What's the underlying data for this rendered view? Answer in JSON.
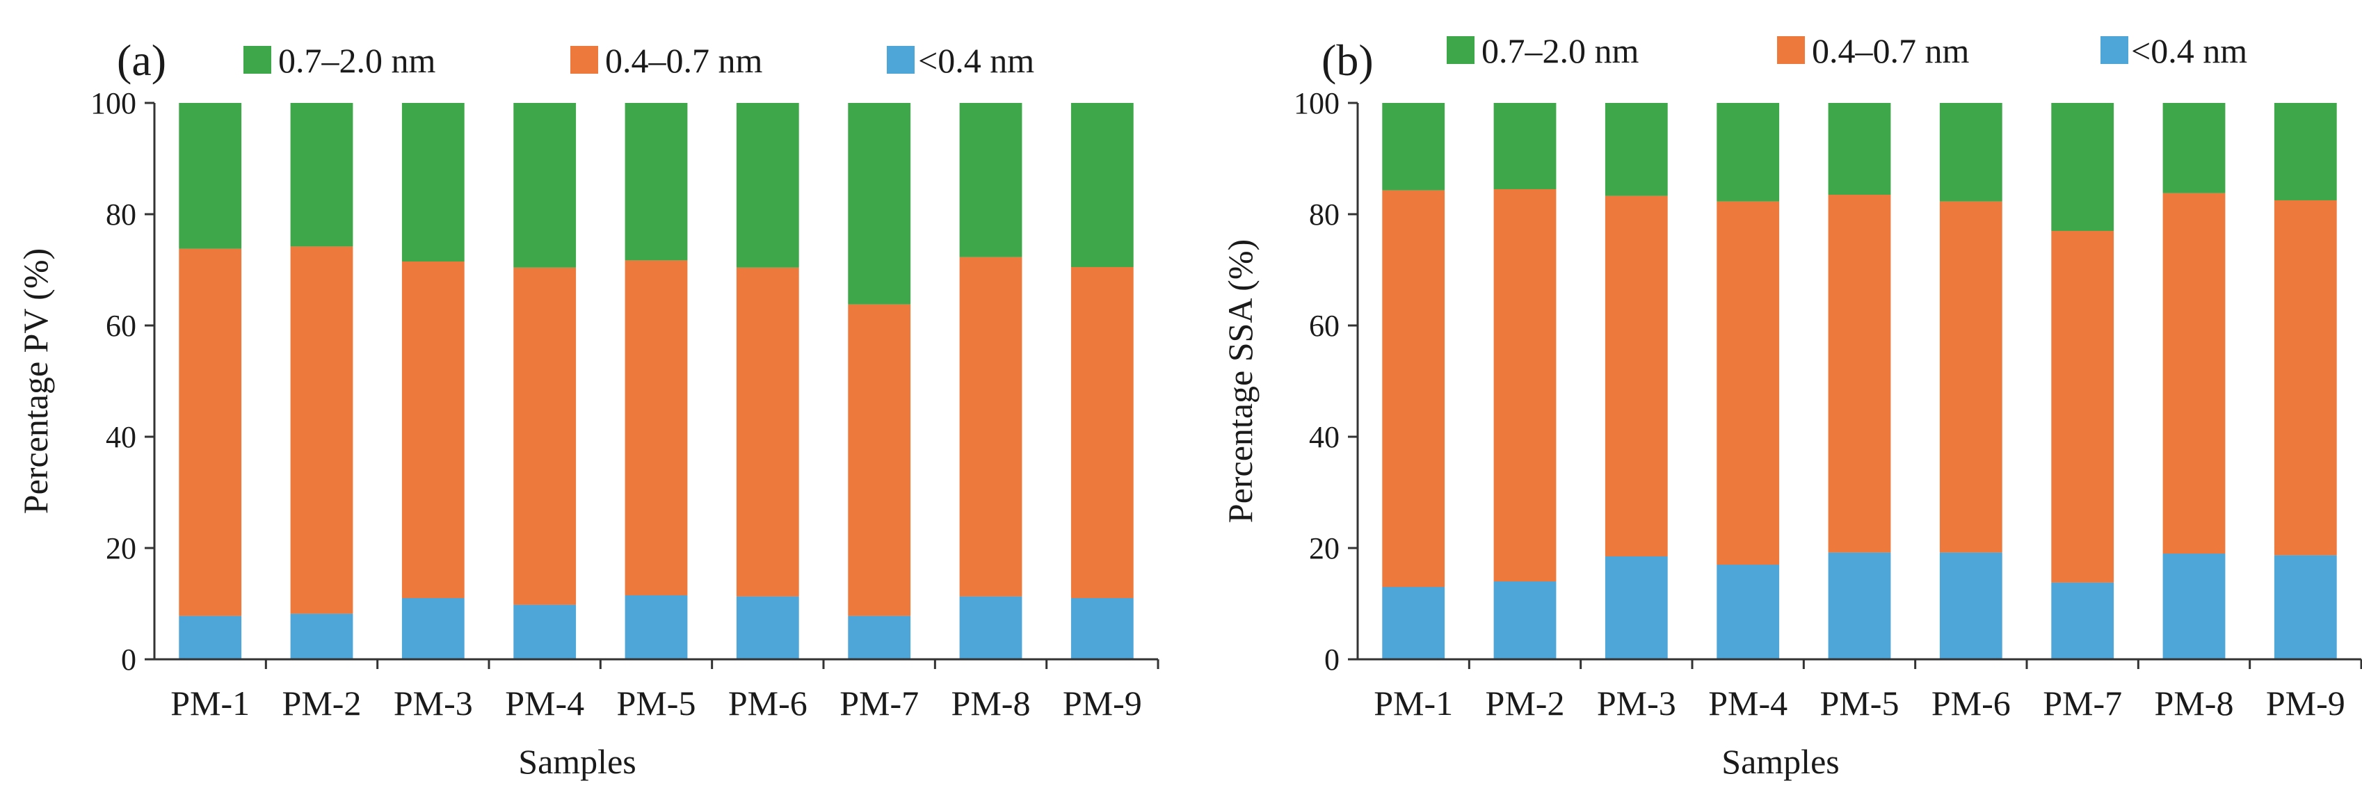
{
  "chart_data": [
    {
      "type": "bar",
      "stacked": true,
      "panel_label": "(a)",
      "xlabel": "Samples",
      "ylabel": "Percentage PV (%)",
      "ylim": [
        0,
        100
      ],
      "yticks": [
        "0",
        "20",
        "40",
        "60",
        "80",
        "100"
      ],
      "grid": false,
      "legend_position": "top",
      "categories": [
        "PM-1",
        "PM-2",
        "PM-3",
        "PM-4",
        "PM-5",
        "PM-6",
        "PM-7",
        "PM-8",
        "PM-9"
      ],
      "series": [
        {
          "name": "<0.4 nm",
          "color": "#4ea6d8",
          "values": [
            7.8,
            8.2,
            11.0,
            9.8,
            11.5,
            11.3,
            7.8,
            11.3,
            11.0
          ]
        },
        {
          "name": "0.4–0.7 nm",
          "color": "#ed7a3c",
          "values": [
            66.0,
            66.0,
            60.5,
            60.6,
            60.2,
            59.1,
            56.0,
            61.0,
            59.5
          ]
        },
        {
          "name": "0.7–2.0 nm",
          "color": "#3ea74a",
          "values": [
            26.2,
            25.8,
            28.5,
            29.6,
            28.3,
            29.6,
            36.2,
            27.7,
            29.5
          ]
        }
      ]
    },
    {
      "type": "bar",
      "stacked": true,
      "panel_label": "(b)",
      "xlabel": "Samples",
      "ylabel": "Percentage  SSA (%)",
      "ylim": [
        0,
        100
      ],
      "yticks": [
        "0",
        "20",
        "40",
        "60",
        "80",
        "100"
      ],
      "grid": false,
      "legend_position": "top",
      "categories": [
        "PM-1",
        "PM-2",
        "PM-3",
        "PM-4",
        "PM-5",
        "PM-6",
        "PM-7",
        "PM-8",
        "PM-9"
      ],
      "series": [
        {
          "name": "<0.4 nm",
          "color": "#4ea6d8",
          "values": [
            13.0,
            14.0,
            18.5,
            17.0,
            19.2,
            19.2,
            13.8,
            19.0,
            18.7
          ]
        },
        {
          "name": "0.4–0.7 nm",
          "color": "#ed7a3c",
          "values": [
            71.3,
            70.5,
            64.8,
            65.3,
            64.3,
            63.1,
            63.2,
            64.8,
            63.8
          ]
        },
        {
          "name": "0.7–2.0 nm",
          "color": "#3ea74a",
          "values": [
            15.7,
            15.5,
            16.7,
            17.7,
            16.5,
            17.7,
            23.0,
            16.2,
            17.5
          ]
        }
      ]
    }
  ]
}
